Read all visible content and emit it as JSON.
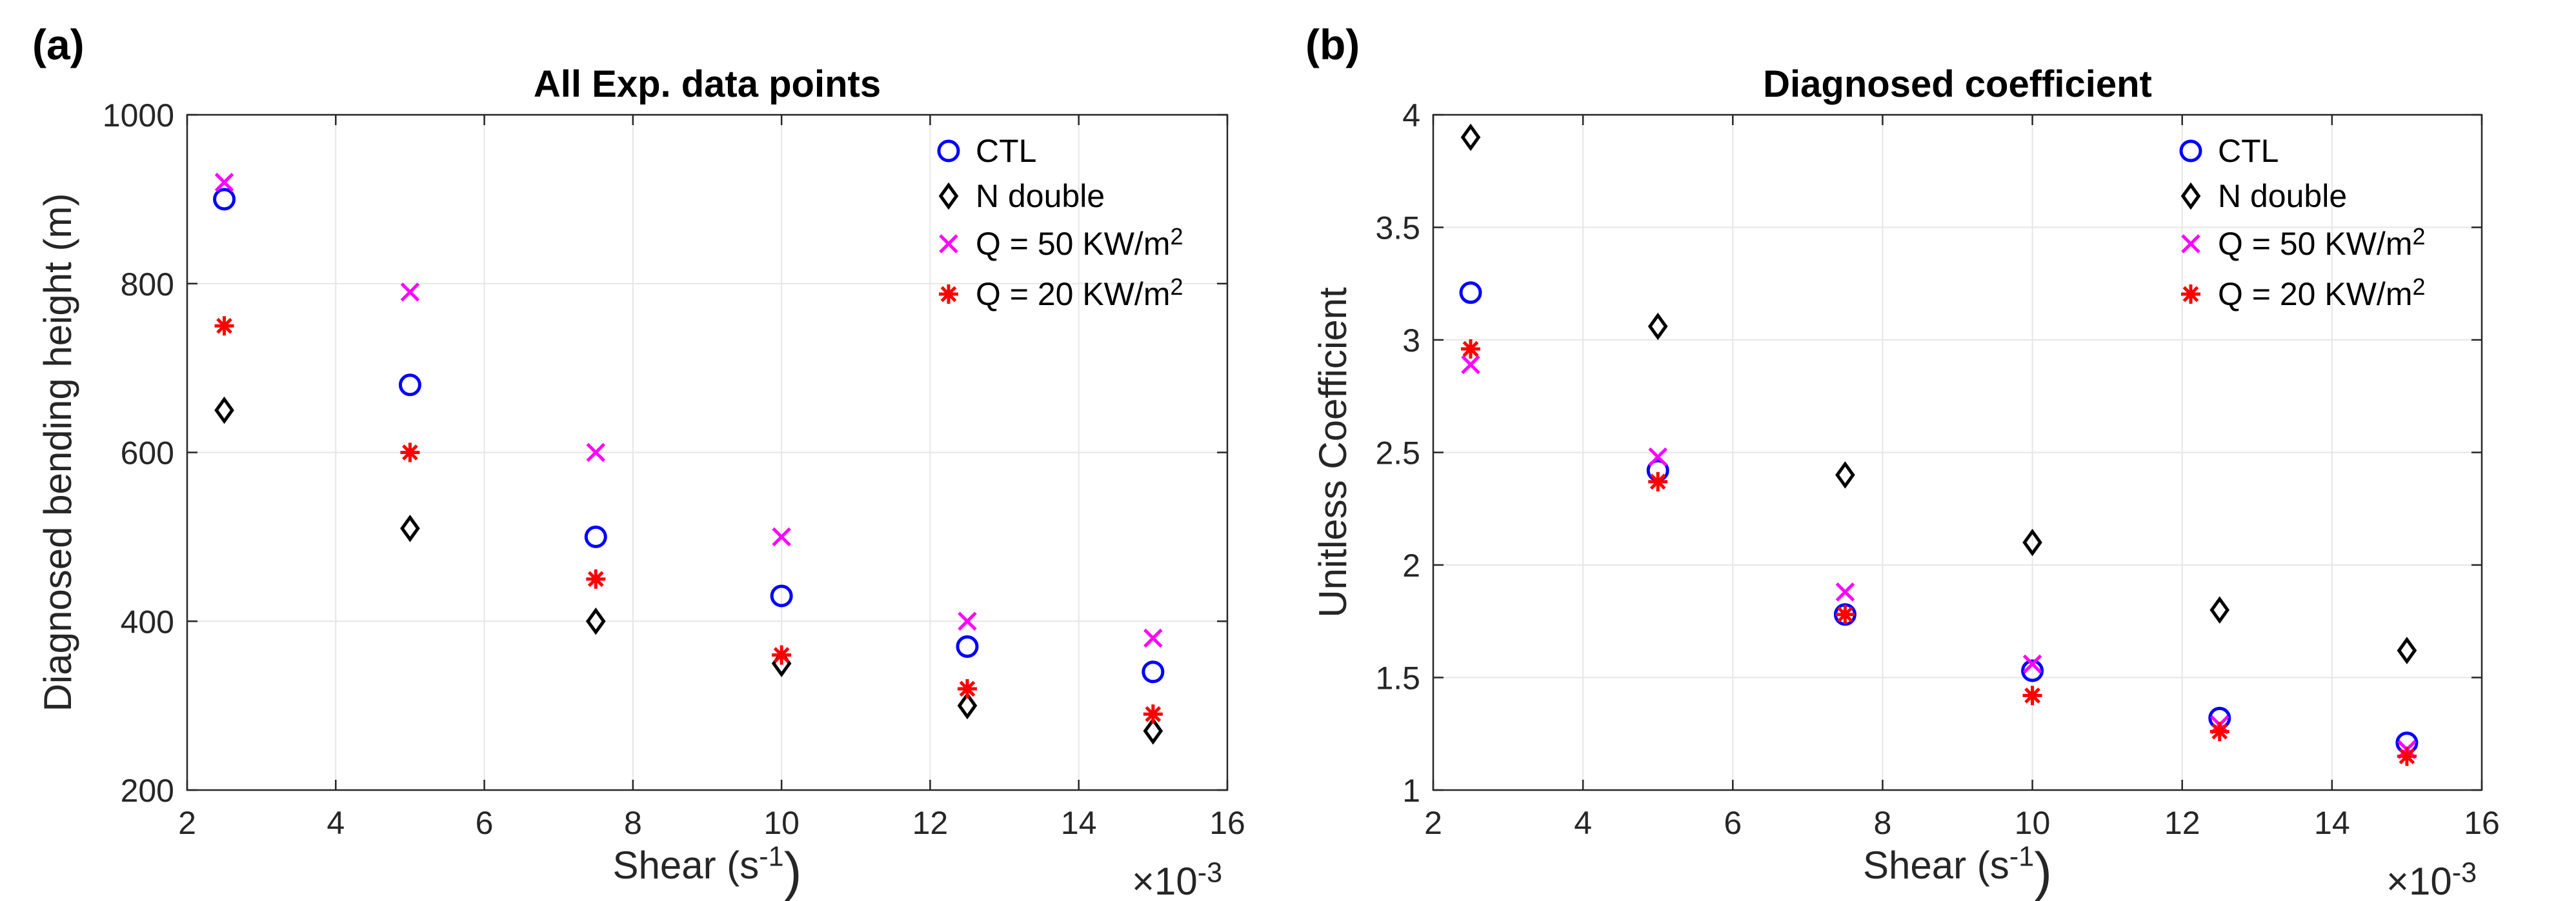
{
  "chart_data": [
    {
      "type": "scatter",
      "panel_label": "(a)",
      "title": "All Exp. data points",
      "xlabel": "Shear (s⁻¹)",
      "xlabel_main": "Shear (s",
      "xlabel_sup": "-1",
      "xlabel_end": ")",
      "ylabel": "Diagnosed bending height (m)",
      "x_multiplier": "×10",
      "x_multiplier_exp": "-3",
      "xlim": [
        2,
        16
      ],
      "ylim": [
        200,
        1000
      ],
      "xticks": [
        2,
        4,
        6,
        8,
        10,
        12,
        14,
        16
      ],
      "yticks": [
        200,
        400,
        600,
        800,
        1000
      ],
      "grid": true,
      "legend_position": "top-right",
      "x": [
        2.5,
        5,
        7.5,
        10,
        12.5,
        15
      ],
      "series": [
        {
          "name": "CTL",
          "label_main": "CTL",
          "label_sup": "",
          "marker": "circle",
          "color": "#0000ff",
          "values": [
            900,
            680,
            500,
            430,
            370,
            340
          ]
        },
        {
          "name": "N double",
          "label_main": "N double",
          "label_sup": "",
          "marker": "diamond",
          "color": "#000000",
          "values": [
            650,
            510,
            400,
            350,
            300,
            270
          ]
        },
        {
          "name": "Q = 50 KW/m²",
          "label_main": "Q = 50 KW/m",
          "label_sup": "2",
          "marker": "x",
          "color": "#ff00ff",
          "values": [
            920,
            790,
            600,
            500,
            400,
            380
          ]
        },
        {
          "name": "Q = 20 KW/m²",
          "label_main": "Q = 20 KW/m",
          "label_sup": "2",
          "marker": "asterisk",
          "color": "#ff0000",
          "values": [
            750,
            600,
            450,
            360,
            320,
            290
          ]
        }
      ]
    },
    {
      "type": "scatter",
      "panel_label": "(b)",
      "title": "Diagnosed coefficient",
      "xlabel": "Shear (s⁻¹)",
      "xlabel_main": "Shear (s",
      "xlabel_sup": "-1",
      "xlabel_end": ")",
      "ylabel": "Unitless Coefficient",
      "x_multiplier": "×10",
      "x_multiplier_exp": "-3",
      "xlim": [
        2,
        16
      ],
      "ylim": [
        1,
        4
      ],
      "xticks": [
        2,
        4,
        6,
        8,
        10,
        12,
        14,
        16
      ],
      "yticks": [
        1,
        1.5,
        2,
        2.5,
        3,
        3.5,
        4
      ],
      "grid": true,
      "legend_position": "top-right",
      "x": [
        2.5,
        5,
        7.5,
        10,
        12.5,
        15
      ],
      "series": [
        {
          "name": "CTL",
          "label_main": "CTL",
          "label_sup": "",
          "marker": "circle",
          "color": "#0000ff",
          "values": [
            3.21,
            2.42,
            1.78,
            1.53,
            1.32,
            1.21
          ]
        },
        {
          "name": "N double",
          "label_main": "N double",
          "label_sup": "",
          "marker": "diamond",
          "color": "#000000",
          "values": [
            3.9,
            3.06,
            2.4,
            2.1,
            1.8,
            1.62
          ]
        },
        {
          "name": "Q = 50 KW/m²",
          "label_main": "Q = 50 KW/m",
          "label_sup": "2",
          "marker": "x",
          "color": "#ff00ff",
          "values": [
            2.89,
            2.48,
            1.88,
            1.56,
            1.29,
            1.18
          ]
        },
        {
          "name": "Q = 20 KW/m²",
          "label_main": "Q = 20 KW/m",
          "label_sup": "2",
          "marker": "asterisk",
          "color": "#ff0000",
          "values": [
            2.96,
            2.37,
            1.78,
            1.42,
            1.26,
            1.15
          ]
        }
      ]
    }
  ]
}
